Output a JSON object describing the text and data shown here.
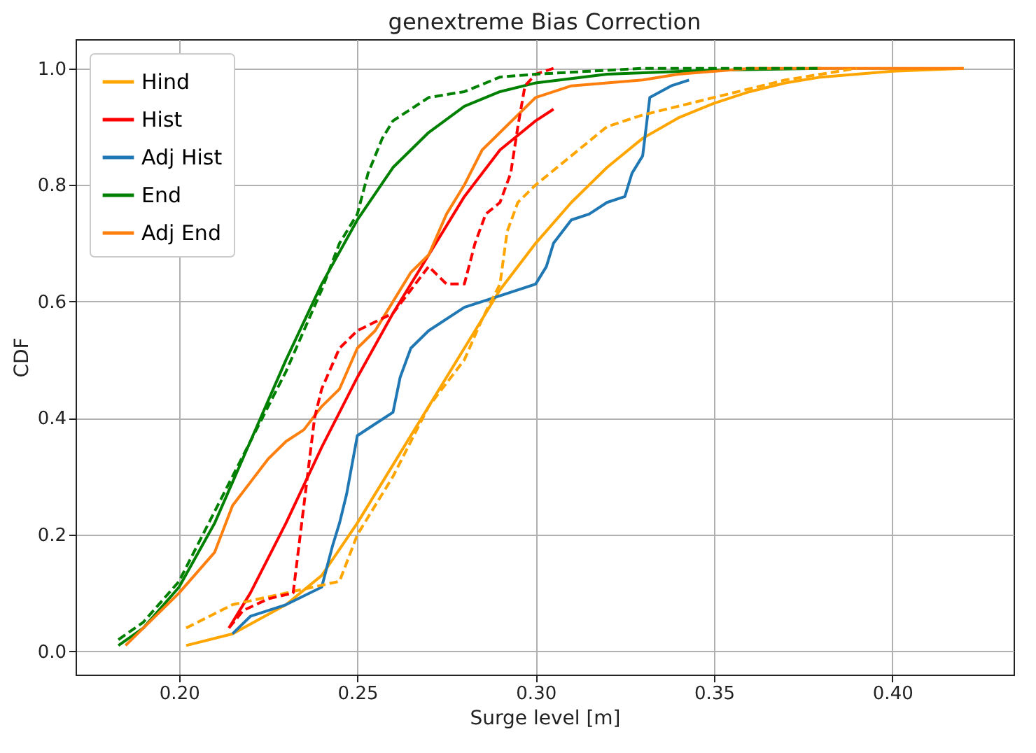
{
  "chart_data": {
    "type": "line",
    "title": "genextreme Bias Correction",
    "xlabel": "Surge level [m]",
    "ylabel": "CDF",
    "xlim": [
      0.171,
      0.434
    ],
    "ylim": [
      -0.04,
      1.05
    ],
    "xticks": [
      {
        "value": 0.2,
        "label": "0.20"
      },
      0.25,
      {
        "value": 0.3,
        "label": "0.30"
      },
      0.35,
      {
        "value": 0.4,
        "label": "0.40"
      }
    ],
    "yticks": [
      {
        "value": 0,
        "label": "0.0"
      },
      0.2,
      0.4,
      0.6,
      0.8,
      {
        "value": 1,
        "label": "1.0"
      }
    ],
    "grid": true,
    "legend": "top left",
    "marker": "none",
    "series": [
      {
        "name": "Hind",
        "color": "#ffa500",
        "line_style": "solid",
        "x": [
          0.202,
          0.215,
          0.23,
          0.24,
          0.25,
          0.26,
          0.27,
          0.28,
          0.29,
          0.3,
          0.31,
          0.32,
          0.33,
          0.34,
          0.35,
          0.36,
          0.37,
          0.38,
          0.4,
          0.42
        ],
        "values": [
          0.01,
          0.03,
          0.08,
          0.13,
          0.22,
          0.32,
          0.42,
          0.52,
          0.62,
          0.7,
          0.77,
          0.83,
          0.88,
          0.915,
          0.94,
          0.96,
          0.975,
          0.985,
          0.995,
          1.0
        ]
      },
      {
        "name": "Hist",
        "color": "#ff0000",
        "line_style": "solid",
        "x": [
          0.214,
          0.22,
          0.23,
          0.24,
          0.25,
          0.26,
          0.27,
          0.28,
          0.29,
          0.3,
          0.305
        ],
        "values": [
          0.04,
          0.1,
          0.22,
          0.35,
          0.47,
          0.58,
          0.68,
          0.78,
          0.86,
          0.91,
          0.93
        ]
      },
      {
        "name": "Adj Hist",
        "color": "#1f77b4",
        "line_style": "solid",
        "x": [
          0.215,
          0.22,
          0.23,
          0.24,
          0.243,
          0.245,
          0.247,
          0.25,
          0.255,
          0.26,
          0.262,
          0.265,
          0.27,
          0.28,
          0.29,
          0.3,
          0.303,
          0.305,
          0.31,
          0.315,
          0.32,
          0.325,
          0.327,
          0.33,
          0.332,
          0.338,
          0.343
        ],
        "values": [
          0.03,
          0.06,
          0.08,
          0.11,
          0.18,
          0.22,
          0.27,
          0.37,
          0.39,
          0.41,
          0.47,
          0.52,
          0.55,
          0.59,
          0.61,
          0.63,
          0.66,
          0.7,
          0.74,
          0.75,
          0.77,
          0.78,
          0.82,
          0.85,
          0.95,
          0.97,
          0.98
        ]
      },
      {
        "name": "End",
        "color": "#008000",
        "line_style": "solid",
        "x": [
          0.183,
          0.19,
          0.2,
          0.21,
          0.22,
          0.23,
          0.24,
          0.25,
          0.26,
          0.27,
          0.28,
          0.29,
          0.3,
          0.32,
          0.35,
          0.38
        ],
        "values": [
          0.01,
          0.04,
          0.11,
          0.22,
          0.36,
          0.5,
          0.63,
          0.74,
          0.83,
          0.89,
          0.935,
          0.96,
          0.975,
          0.99,
          0.997,
          1.0
        ]
      },
      {
        "name": "Adj End",
        "color": "#ff7f0e",
        "line_style": "solid",
        "x": [
          0.185,
          0.19,
          0.2,
          0.21,
          0.215,
          0.22,
          0.225,
          0.23,
          0.235,
          0.24,
          0.245,
          0.25,
          0.255,
          0.26,
          0.265,
          0.27,
          0.275,
          0.28,
          0.285,
          0.29,
          0.3,
          0.31,
          0.33,
          0.34,
          0.36,
          0.42
        ],
        "values": [
          0.01,
          0.04,
          0.1,
          0.17,
          0.25,
          0.29,
          0.33,
          0.36,
          0.38,
          0.42,
          0.45,
          0.52,
          0.55,
          0.6,
          0.65,
          0.68,
          0.75,
          0.8,
          0.86,
          0.89,
          0.95,
          0.97,
          0.98,
          0.99,
          1.0,
          1.0
        ]
      },
      {
        "color": "#ffa500",
        "line_style": "dashed",
        "x": [
          0.202,
          0.215,
          0.23,
          0.245,
          0.25,
          0.26,
          0.265,
          0.27,
          0.28,
          0.285,
          0.29,
          0.292,
          0.295,
          0.3,
          0.31,
          0.32,
          0.33,
          0.35,
          0.37,
          0.39
        ],
        "values": [
          0.04,
          0.08,
          0.1,
          0.12,
          0.2,
          0.3,
          0.36,
          0.42,
          0.5,
          0.57,
          0.63,
          0.72,
          0.77,
          0.8,
          0.85,
          0.9,
          0.92,
          0.95,
          0.98,
          1.0
        ]
      },
      {
        "color": "#ff0000",
        "line_style": "dashed",
        "x": [
          0.214,
          0.218,
          0.225,
          0.232,
          0.235,
          0.238,
          0.24,
          0.245,
          0.25,
          0.26,
          0.265,
          0.27,
          0.275,
          0.28,
          0.283,
          0.286,
          0.29,
          0.293,
          0.295,
          0.297,
          0.3,
          0.305
        ],
        "values": [
          0.04,
          0.07,
          0.09,
          0.1,
          0.25,
          0.4,
          0.45,
          0.52,
          0.55,
          0.58,
          0.62,
          0.66,
          0.63,
          0.63,
          0.7,
          0.75,
          0.77,
          0.82,
          0.9,
          0.97,
          0.99,
          1.0
        ]
      },
      {
        "color": "#008000",
        "line_style": "dashed",
        "x": [
          0.183,
          0.19,
          0.2,
          0.21,
          0.22,
          0.23,
          0.24,
          0.245,
          0.25,
          0.253,
          0.257,
          0.26,
          0.27,
          0.28,
          0.29,
          0.3,
          0.33,
          0.38
        ],
        "values": [
          0.02,
          0.05,
          0.12,
          0.24,
          0.36,
          0.48,
          0.62,
          0.7,
          0.75,
          0.82,
          0.88,
          0.91,
          0.95,
          0.96,
          0.985,
          0.99,
          1.0,
          1.0
        ]
      }
    ]
  }
}
